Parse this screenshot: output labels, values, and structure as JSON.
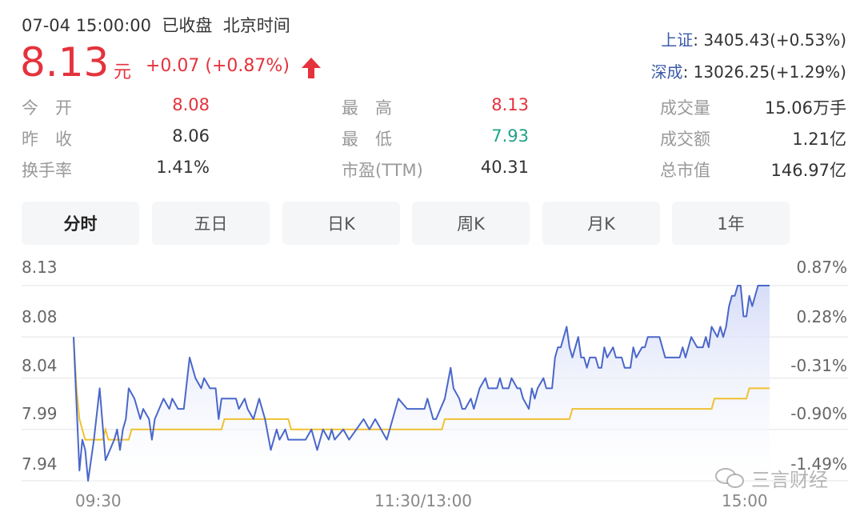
{
  "header": {
    "datetime": "07-04 15:00:00",
    "status": "已收盘",
    "timezone": "北京时间",
    "price": "8.13",
    "unit": "元",
    "change": "+0.07 (+0.87%)",
    "trend_icon": "arrow-up-icon"
  },
  "indices": [
    {
      "name": "上证",
      "value": ": 3405.43(+0.53%)"
    },
    {
      "name": "深成",
      "value": ": 13026.25(+1.29%)"
    }
  ],
  "stats": [
    {
      "label": "今　开",
      "value": "8.08",
      "tone": "up"
    },
    {
      "label": "昨　收",
      "value": "8.06",
      "tone": "flat"
    },
    {
      "label": "换手率",
      "value": "1.41%",
      "tone": "flat"
    },
    {
      "label": "最　高",
      "value": "8.13",
      "tone": "up"
    },
    {
      "label": "最　低",
      "value": "7.93",
      "tone": "down"
    },
    {
      "label": "市盈(TTM)",
      "value": "40.31",
      "tone": "flat"
    },
    {
      "label": "成交量",
      "value": "15.06万手",
      "tone": "flat"
    },
    {
      "label": "成交额",
      "value": "1.21亿",
      "tone": "flat"
    },
    {
      "label": "总市值",
      "value": "146.97亿",
      "tone": "flat"
    }
  ],
  "tabs": [
    {
      "label": "分时",
      "active": true
    },
    {
      "label": "五日"
    },
    {
      "label": "日K"
    },
    {
      "label": "周K"
    },
    {
      "label": "月K"
    },
    {
      "label": "1年"
    }
  ],
  "colors": {
    "up": "#e5323c",
    "down": "#1fa38a",
    "price_line": "#4a67c9",
    "avg_line": "#f0c030",
    "fill": "#dfe4fa"
  },
  "watermark": {
    "icon": "wechat-icon",
    "text": "三言财经"
  },
  "chart_data": {
    "type": "line",
    "x_unit": "trading minutes from 09:30",
    "xlim": [
      0,
      240
    ],
    "ylim": [
      7.94,
      8.13
    ],
    "y_ticks_left": [
      "8.13",
      "8.08",
      "8.04",
      "7.99",
      "7.94"
    ],
    "y_tick_values": [
      8.13,
      8.08,
      8.04,
      7.99,
      7.94
    ],
    "y_ticks_right": [
      "0.87%",
      "0.28%",
      "-0.31%",
      "-0.90%",
      "-1.49%"
    ],
    "x_ticks": [
      "09:30",
      "11:30/13:00",
      "15:00"
    ],
    "x_tick_values": [
      0,
      120,
      240
    ],
    "grid": true,
    "series": [
      {
        "role": "price",
        "color": "#4a67c9",
        "area": true,
        "points": [
          [
            0,
            8.08
          ],
          [
            2,
            7.95
          ],
          [
            3,
            7.98
          ],
          [
            4,
            7.97
          ],
          [
            5,
            7.94
          ],
          [
            7,
            7.98
          ],
          [
            9,
            8.03
          ],
          [
            11,
            7.96
          ],
          [
            14,
            7.98
          ],
          [
            15,
            7.99
          ],
          [
            16,
            7.97
          ],
          [
            17,
            7.99
          ],
          [
            18,
            8.0
          ],
          [
            19,
            8.03
          ],
          [
            21,
            8.02
          ],
          [
            23,
            8.0
          ],
          [
            24,
            8.01
          ],
          [
            26,
            8.0
          ],
          [
            27,
            7.98
          ],
          [
            28,
            8.0
          ],
          [
            31,
            8.02
          ],
          [
            33,
            8.01
          ],
          [
            34,
            8.02
          ],
          [
            36,
            8.01
          ],
          [
            38,
            8.01
          ],
          [
            40,
            8.06
          ],
          [
            42,
            8.04
          ],
          [
            44,
            8.03
          ],
          [
            45,
            8.04
          ],
          [
            47,
            8.03
          ],
          [
            49,
            8.03
          ],
          [
            50,
            8.0
          ],
          [
            51,
            8.02
          ],
          [
            56,
            8.02
          ],
          [
            57,
            8.01
          ],
          [
            59,
            8.02
          ],
          [
            60,
            8.01
          ],
          [
            62,
            8.0
          ],
          [
            64,
            8.02
          ],
          [
            66,
            8.0
          ],
          [
            68,
            7.97
          ],
          [
            70,
            7.99
          ],
          [
            71,
            7.98
          ],
          [
            73,
            7.99
          ],
          [
            74,
            7.98
          ],
          [
            80,
            7.98
          ],
          [
            82,
            7.99
          ],
          [
            84,
            7.97
          ],
          [
            86,
            7.99
          ],
          [
            88,
            7.98
          ],
          [
            89,
            7.99
          ],
          [
            90,
            7.98
          ],
          [
            93,
            7.99
          ],
          [
            95,
            7.98
          ],
          [
            100,
            8.0
          ],
          [
            102,
            7.99
          ],
          [
            104,
            8.0
          ],
          [
            106,
            7.99
          ],
          [
            108,
            7.98
          ],
          [
            110,
            8.0
          ],
          [
            112,
            8.02
          ],
          [
            115,
            8.01
          ],
          [
            121,
            8.01
          ],
          [
            122,
            8.02
          ],
          [
            124,
            8.0
          ],
          [
            125,
            8.0
          ],
          [
            128,
            8.02
          ],
          [
            130,
            8.05
          ],
          [
            131,
            8.03
          ],
          [
            133,
            8.02
          ],
          [
            134,
            8.01
          ],
          [
            135,
            8.01
          ],
          [
            137,
            8.02
          ],
          [
            138,
            8.01
          ],
          [
            140,
            8.03
          ],
          [
            142,
            8.04
          ],
          [
            143,
            8.03
          ],
          [
            146,
            8.03
          ],
          [
            147,
            8.04
          ],
          [
            148,
            8.03
          ],
          [
            150,
            8.03
          ],
          [
            151,
            8.04
          ],
          [
            153,
            8.03
          ],
          [
            154,
            8.03
          ],
          [
            155,
            8.02
          ],
          [
            157,
            8.01
          ],
          [
            158,
            8.03
          ],
          [
            159,
            8.02
          ],
          [
            160,
            8.03
          ],
          [
            162,
            8.04
          ],
          [
            163,
            8.03
          ],
          [
            165,
            8.03
          ],
          [
            166,
            8.06
          ],
          [
            167,
            8.07
          ],
          [
            168,
            8.07
          ],
          [
            170,
            8.09
          ],
          [
            171,
            8.07
          ],
          [
            172,
            8.06
          ],
          [
            174,
            8.08
          ],
          [
            175,
            8.06
          ],
          [
            176,
            8.06
          ],
          [
            177,
            8.05
          ],
          [
            178,
            8.06
          ],
          [
            180,
            8.06
          ],
          [
            181,
            8.05
          ],
          [
            182,
            8.05
          ],
          [
            183,
            8.07
          ],
          [
            184,
            8.06
          ],
          [
            186,
            8.07
          ],
          [
            187,
            8.06
          ],
          [
            189,
            8.06
          ],
          [
            190,
            8.05
          ],
          [
            192,
            8.05
          ],
          [
            193,
            8.07
          ],
          [
            194,
            8.06
          ],
          [
            196,
            8.07
          ],
          [
            197,
            8.07
          ],
          [
            198,
            8.08
          ],
          [
            202,
            8.08
          ],
          [
            204,
            8.06
          ],
          [
            209,
            8.06
          ],
          [
            210,
            8.07
          ],
          [
            211,
            8.06
          ],
          [
            213,
            8.08
          ],
          [
            215,
            8.07
          ],
          [
            217,
            8.07
          ],
          [
            218,
            8.08
          ],
          [
            219,
            8.07
          ],
          [
            220,
            8.09
          ],
          [
            222,
            8.08
          ],
          [
            223,
            8.09
          ],
          [
            224,
            8.08
          ],
          [
            225,
            8.09
          ],
          [
            226,
            8.11
          ],
          [
            227,
            8.12
          ],
          [
            228,
            8.12
          ],
          [
            229,
            8.13
          ],
          [
            230,
            8.13
          ],
          [
            231,
            8.1
          ],
          [
            232,
            8.1
          ],
          [
            233,
            8.12
          ],
          [
            234,
            8.11
          ],
          [
            236,
            8.13
          ],
          [
            240,
            8.13
          ]
        ]
      },
      {
        "role": "average",
        "color": "#f0c030",
        "points": [
          [
            0,
            8.08
          ],
          [
            1,
            8.03
          ],
          [
            2,
            8.0
          ],
          [
            4,
            7.98
          ],
          [
            10,
            7.98
          ],
          [
            11,
            7.99
          ],
          [
            12,
            7.98
          ],
          [
            19,
            7.98
          ],
          [
            20,
            7.99
          ],
          [
            51,
            7.99
          ],
          [
            52,
            8.0
          ],
          [
            74,
            8.0
          ],
          [
            75,
            7.99
          ],
          [
            127,
            7.99
          ],
          [
            128,
            8.0
          ],
          [
            171,
            8.0
          ],
          [
            172,
            8.01
          ],
          [
            220,
            8.01
          ],
          [
            221,
            8.02
          ],
          [
            232,
            8.02
          ],
          [
            233,
            8.03
          ],
          [
            240,
            8.03
          ]
        ]
      }
    ]
  }
}
